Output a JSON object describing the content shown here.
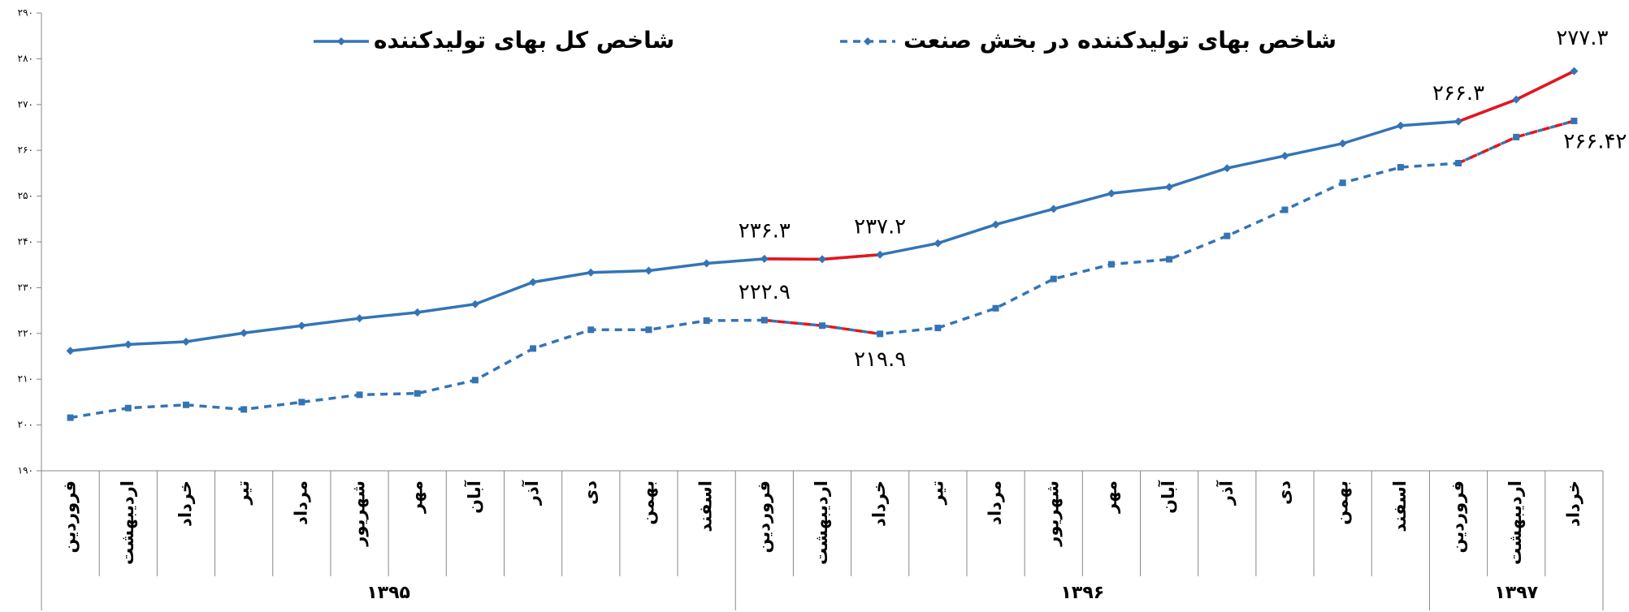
{
  "chart_data": {
    "type": "line",
    "categories": [
      "فروردین",
      "اردیبهشت",
      "خرداد",
      "تیر",
      "مرداد",
      "شهریور",
      "مهر",
      "آبان",
      "آذر",
      "دی",
      "بهمن",
      "اسفند",
      "فروردین",
      "اردیبهشت",
      "خرداد",
      "تیر",
      "مرداد",
      "شهریور",
      "مهر",
      "آبان",
      "آذر",
      "دی",
      "بهمن",
      "اسفند",
      "فروردین",
      "اردیبهشت",
      "خرداد"
    ],
    "year_groups": [
      {
        "name": "۱۳۹۵",
        "count": 12
      },
      {
        "name": "۱۳۹۶",
        "count": 12
      },
      {
        "name": "۱۳۹۷",
        "count": 3
      }
    ],
    "series": [
      {
        "name": "شاخص کل بهای تولیدکننده",
        "color": "#3474b5",
        "dash": false,
        "marker": "diamond",
        "values": [
          216.2,
          217.6,
          218.2,
          220.1,
          221.7,
          223.3,
          224.6,
          226.4,
          231.2,
          233.3,
          233.7,
          235.3,
          236.3,
          236.2,
          237.2,
          239.7,
          243.8,
          247.2,
          250.6,
          252.0,
          256.1,
          258.8,
          261.5,
          265.4,
          266.3,
          271.1,
          277.3
        ],
        "value_labels": [
          null,
          null,
          null,
          null,
          null,
          null,
          null,
          null,
          null,
          null,
          null,
          null,
          "۲۳۶.۳",
          null,
          "۲۳۷.۲",
          null,
          null,
          null,
          null,
          null,
          null,
          null,
          null,
          null,
          "۲۶۶.۳",
          null,
          "۲۷۷.۳"
        ]
      },
      {
        "name": "شاخص بهای تولیدکننده در بخش صنعت",
        "color": "#3474b5",
        "dash": true,
        "marker": "square",
        "values": [
          201.6,
          203.7,
          204.4,
          203.4,
          205.0,
          206.6,
          206.9,
          209.8,
          216.7,
          220.8,
          220.8,
          222.8,
          222.9,
          221.7,
          219.9,
          221.2,
          225.5,
          231.9,
          235.1,
          236.2,
          241.3,
          247.0,
          252.9,
          256.3,
          257.2,
          262.9,
          266.42
        ],
        "value_labels": [
          null,
          null,
          null,
          null,
          null,
          null,
          null,
          null,
          null,
          null,
          null,
          null,
          "۲۲۲.۹",
          null,
          "۲۱۹.۹",
          null,
          null,
          null,
          null,
          null,
          null,
          null,
          null,
          null,
          null,
          null,
          "۲۶۶.۴۲"
        ]
      }
    ],
    "highlight": {
      "color": "#e8141b",
      "ranges": [
        [
          12,
          14
        ],
        [
          24,
          26
        ]
      ]
    },
    "ylim": [
      190,
      290
    ],
    "yticks": [
      {
        "value": 190,
        "label": "۱۹۰"
      },
      {
        "value": 200,
        "label": "۲۰۰"
      },
      {
        "value": 210,
        "label": "۲۱۰"
      },
      {
        "value": 220,
        "label": "۲۲۰"
      },
      {
        "value": 230,
        "label": "۲۳۰"
      },
      {
        "value": 240,
        "label": "۲۴۰"
      },
      {
        "value": 250,
        "label": "۲۵۰"
      },
      {
        "value": 260,
        "label": "۲۶۰"
      },
      {
        "value": 270,
        "label": "۲۷۰"
      },
      {
        "value": 280,
        "label": "۲۸۰"
      },
      {
        "value": 290,
        "label": "۲۹۰"
      }
    ],
    "grid": false,
    "legend": "top"
  }
}
